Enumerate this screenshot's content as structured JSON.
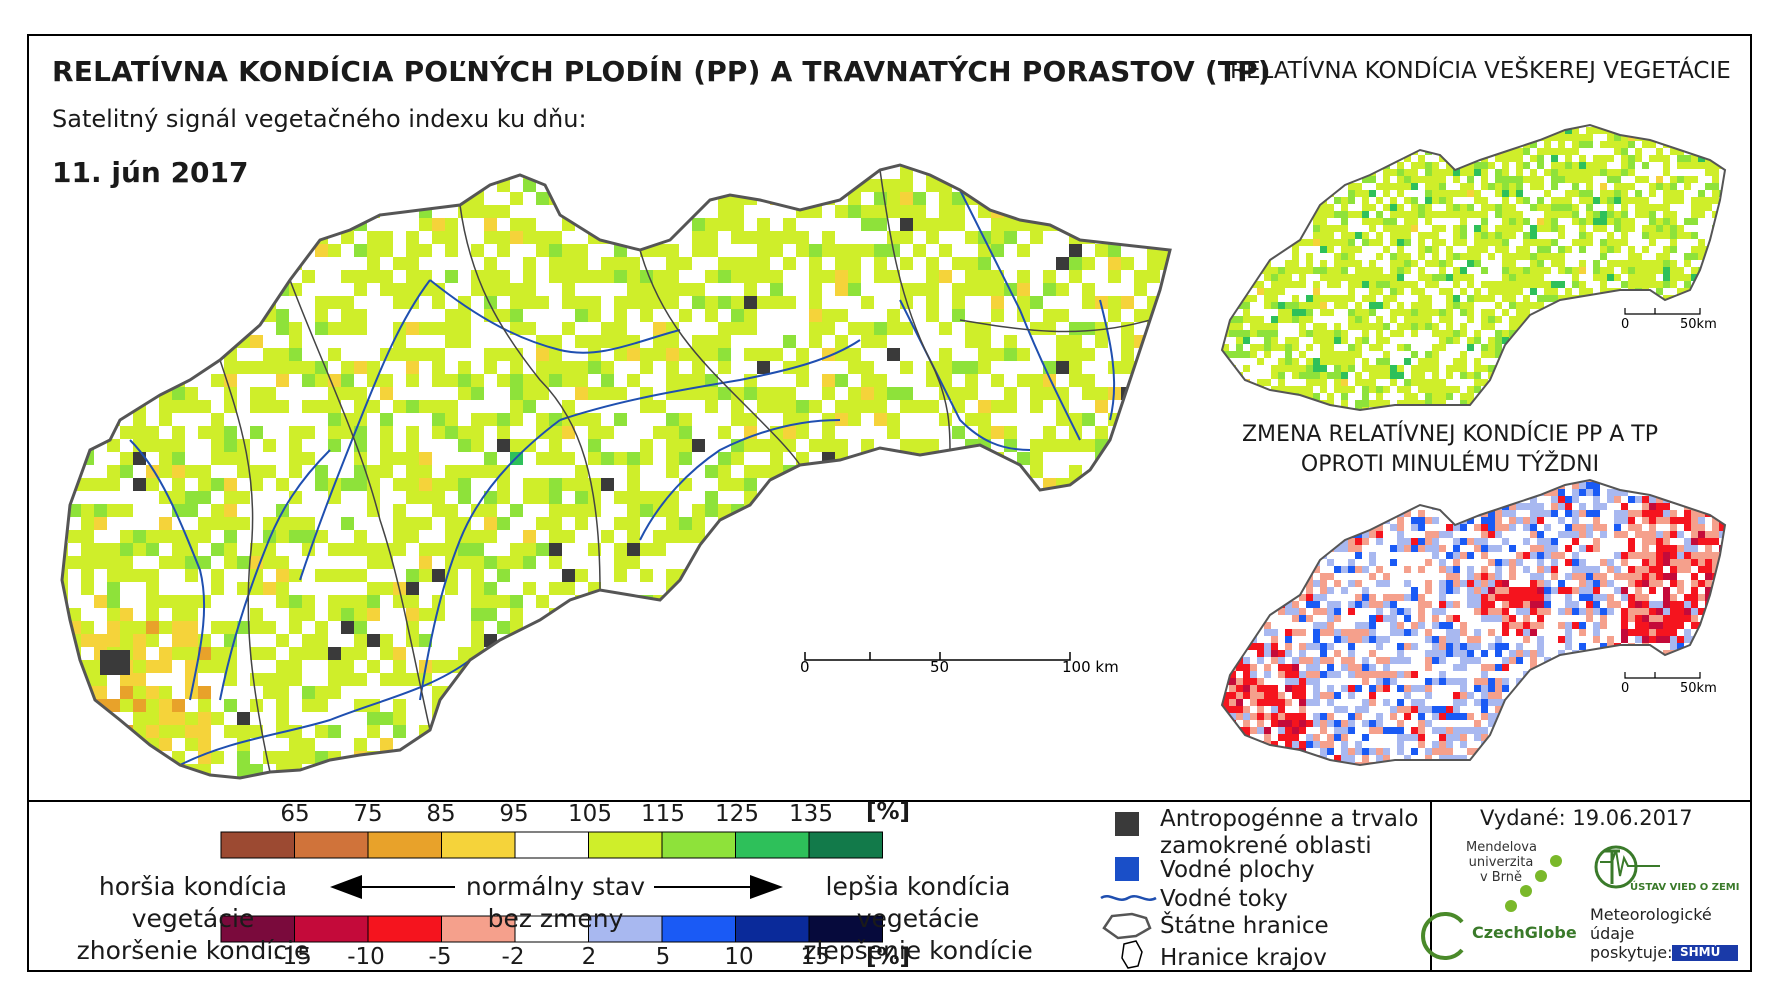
{
  "titles": {
    "main": "RELATÍVNA KONDÍCIA POĽNÝCH PLODÍN (PP) A TRAVNATÝCH PORASTOV (TP)",
    "side": "RELATÍVNA KONDÍCIA VEŠKEREJ VEGETÁCIE",
    "subtitle": "Satelitný signál vegetačného indexu ku dňu:",
    "date": "11. jún 2017",
    "change_line1": "ZMENA RELATÍVNEJ KONDÍCIE PP A TP",
    "change_line2": "OPROTI MINULÉMU TÝŽDNI"
  },
  "scale_bars": {
    "main": [
      "0",
      "50",
      "100 km"
    ],
    "inset_vegetation": [
      "0",
      "50km"
    ],
    "inset_change": [
      "0",
      "50km"
    ]
  },
  "legend_condition": {
    "unit": "[%]",
    "ticks": [
      "65",
      "75",
      "85",
      "95",
      "105",
      "115",
      "125",
      "135"
    ],
    "colors": [
      "#9c4a32",
      "#d0733a",
      "#e8a22a",
      "#f5d33a",
      "#ffffff",
      "#cfee2a",
      "#8ee23a",
      "#2ec05a",
      "#127a4a"
    ]
  },
  "legend_change": {
    "unit": "[%]",
    "ticks": [
      "-15",
      "-10",
      "-5",
      "-2",
      "2",
      "5",
      "10",
      "15"
    ],
    "colors": [
      "#7a0a3c",
      "#c40a3a",
      "#f5141e",
      "#f5a08c",
      "#ffffff",
      "#a8b8f0",
      "#1a5af5",
      "#0a2a9a",
      "#060a3c"
    ]
  },
  "legend_text": {
    "worse_1": "horšia kondícia vegetácie",
    "worse_2": "zhoršenie kondície",
    "normal_1": "normálny stav",
    "normal_2": "bez zmeny",
    "better_1": "lepšia kondícia vegetácie",
    "better_2": "zlepšenie kondície"
  },
  "symbols": {
    "anthropogenic_1": "Antropogénne a trvalo",
    "anthropogenic_2": "zamokrené oblasti",
    "water_bodies": "Vodné plochy",
    "rivers": "Vodné toky",
    "borders": "Štátne hranice",
    "regions": "Hranice krajov",
    "colors": {
      "anthropogenic": "#3a3a3a",
      "water": "#1a4fc8",
      "river": "#1f4fb0"
    }
  },
  "issued": "Vydané: 19.06.2017",
  "logos": {
    "mendel_1": "Mendelova",
    "mendel_2": "univerzita",
    "mendel_3": "v Brně",
    "czechglobe": "CzechGlobe",
    "uvz": "ÚSTAV VIED O ZEMI",
    "meteo_1": "Meteorologické",
    "meteo_2": "údaje",
    "meteo_3": "poskytuje:",
    "shmu": "SHMÚ"
  }
}
